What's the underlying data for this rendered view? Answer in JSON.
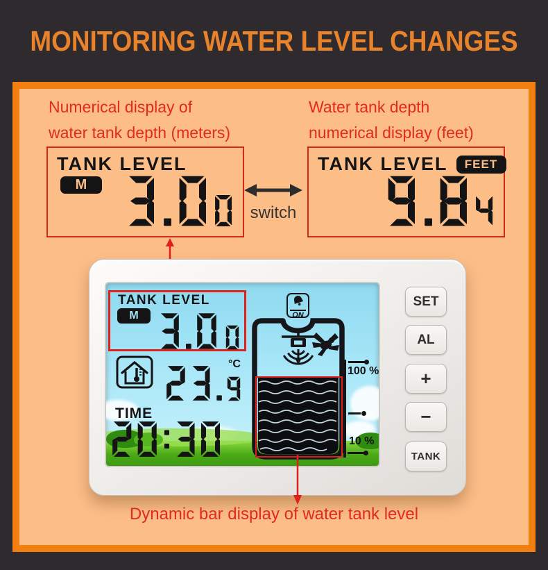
{
  "header": {
    "title": "MONITORING WATER LEVEL CHANGES"
  },
  "annotations": {
    "left_caption_line1": "Numerical display of",
    "left_caption_line2": "water tank depth (meters)",
    "right_caption_line1": "Water tank depth",
    "right_caption_line2": "numerical display (feet)",
    "switch_label": "switch",
    "bottom_caption": "Dynamic bar display of water tank level"
  },
  "meter_box": {
    "label": "TANK LEVEL",
    "unit_badge": "M",
    "value": "3.0",
    "value_small": "0"
  },
  "feet_box": {
    "label": "TANK LEVEL",
    "unit_badge": "FEET",
    "value": "9.8",
    "value_small": "4"
  },
  "device": {
    "screen": {
      "tank_level_label": "TANK LEVEL",
      "tank_level_unit": "M",
      "tank_level_value": "3.0",
      "tank_level_value_small": "0",
      "temperature_value": "23.",
      "temperature_value_small": "9",
      "temperature_unit": "°C",
      "time_label": "TIME",
      "time_value": "20:30",
      "alarm_label": "ON",
      "scale_top_label": "100 %",
      "scale_bottom_label": "10 %"
    },
    "buttons": [
      "SET",
      "AL",
      "+",
      "−",
      "TANK"
    ]
  },
  "colors": {
    "background": "#2e2a2d",
    "panel_border_orange": "#f28010",
    "panel_fill_orange": "#fcbd87",
    "header_orange": "#e8822b",
    "annotation_red": "#e02a22",
    "lcd_blue": "#a4e5f7",
    "segment_black": "#141414"
  }
}
